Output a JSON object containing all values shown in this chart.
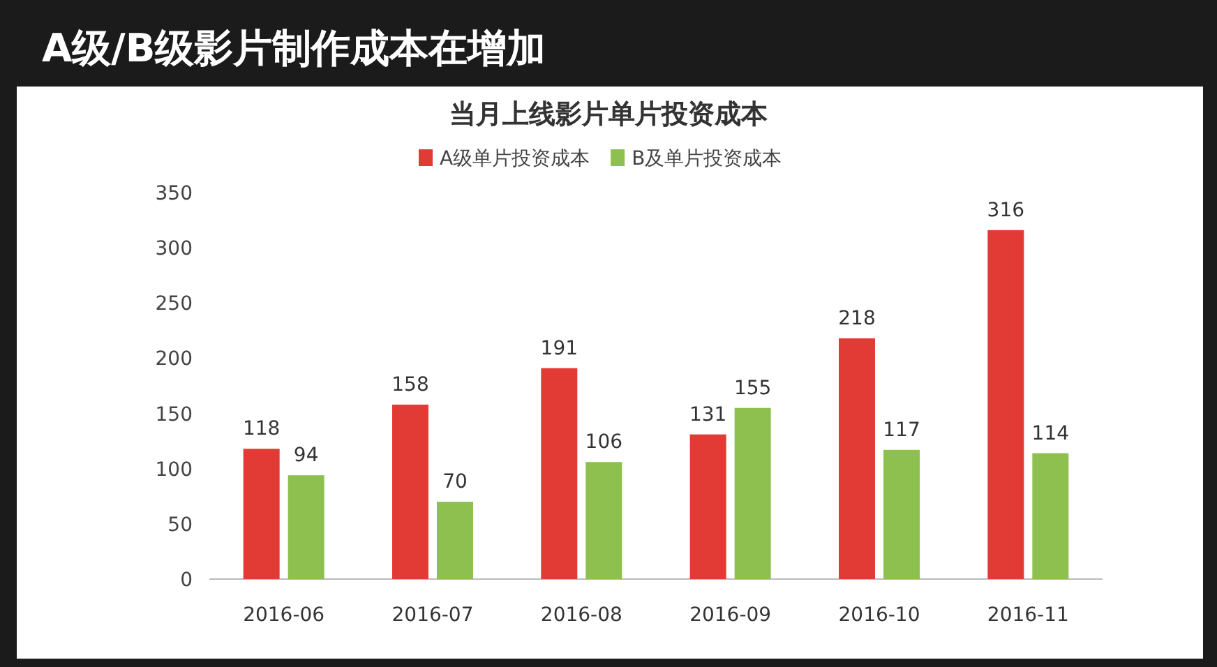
{
  "chart_data": {
    "type": "bar",
    "title": "A级/B级影片制作成本在增加",
    "subtitle": "当月上线影片单片投资成本",
    "categories": [
      "2016-06",
      "2016-07",
      "2016-08",
      "2016-09",
      "2016-10",
      "2016-11"
    ],
    "series": [
      {
        "name": "A级单片投资成本",
        "color": "#e23b36",
        "values": [
          118,
          158,
          191,
          131,
          218,
          316
        ]
      },
      {
        "name": "B及单片投资成本",
        "color": "#8dc04f",
        "values": [
          94,
          70,
          106,
          155,
          117,
          114
        ]
      }
    ],
    "ylim": [
      0,
      350
    ],
    "yticks": [
      0,
      50,
      100,
      150,
      200,
      250,
      300,
      350
    ],
    "data_labels": true,
    "legend": "top",
    "grid": false
  }
}
